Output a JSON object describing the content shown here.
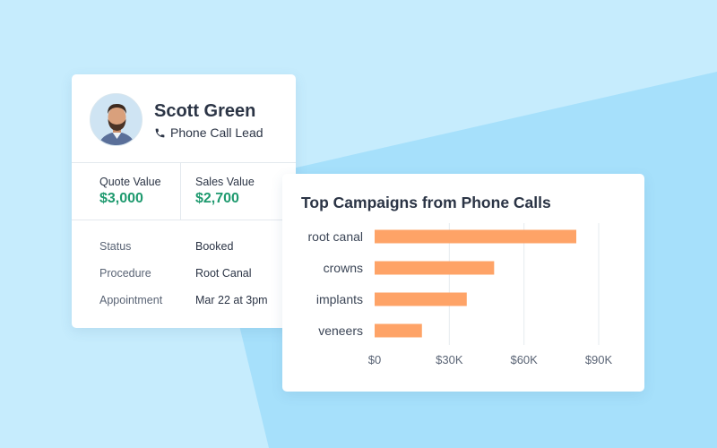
{
  "colors": {
    "background_light": "#c6ecfd",
    "background_dark": "#a6e0fb",
    "accent_green": "#1f9a6f",
    "bar_orange": "#fea367",
    "text_dark": "#2b3445"
  },
  "lead": {
    "name": "Scott Green",
    "type_icon": "phone-icon",
    "type": "Phone Call Lead",
    "quote_label": "Quote Value",
    "quote_value": "$3,000",
    "sales_label": "Sales Value",
    "sales_value": "$2,700",
    "details": [
      {
        "label": "Status",
        "value": "Booked"
      },
      {
        "label": "Procedure",
        "value": "Root Canal"
      },
      {
        "label": "Appointment",
        "value": "Mar 22 at 3pm"
      }
    ]
  },
  "chart_data": {
    "type": "bar",
    "orientation": "horizontal",
    "title": "Top Campaigns from Phone Calls",
    "categories": [
      "root canal",
      "crowns",
      "implants",
      "veneers"
    ],
    "values": [
      81000,
      48000,
      37000,
      19000
    ],
    "xlim": [
      0,
      90000
    ],
    "xticks": [
      0,
      30000,
      60000,
      90000
    ],
    "xtick_labels": [
      "$0",
      "$30K",
      "$60K",
      "$90K"
    ],
    "xlabel": "",
    "ylabel": "",
    "grid": true,
    "legend": false,
    "bar_color": "#fea367"
  }
}
